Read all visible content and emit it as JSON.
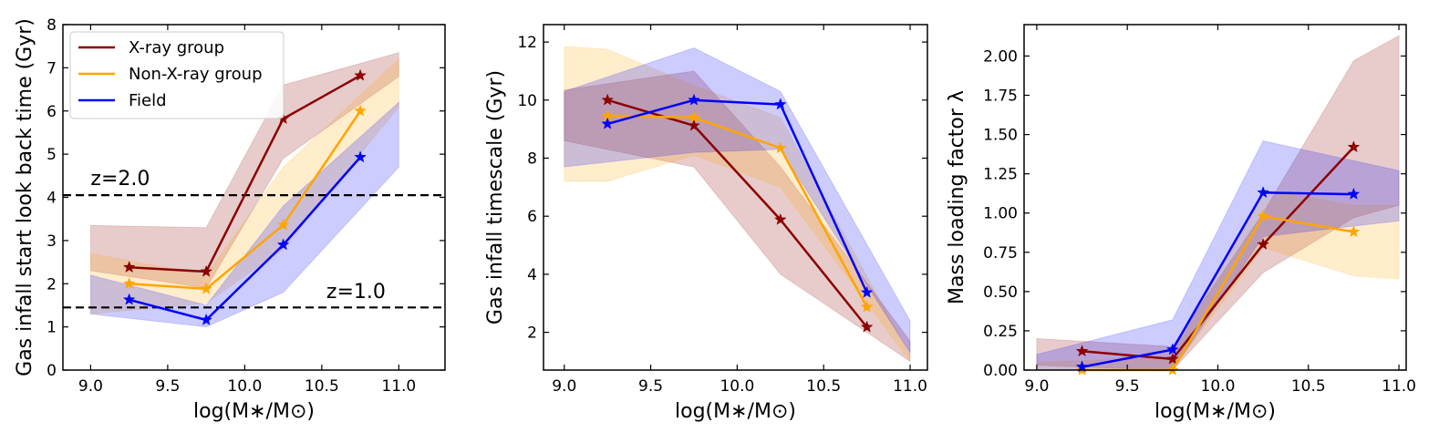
{
  "chart_data": [
    {
      "type": "line",
      "xlabel": "log(M∗/M⊙)",
      "ylabel": "Gas infall start look back time (Gyr)",
      "xlim": [
        8.82,
        11.3
      ],
      "ylim": [
        0,
        8
      ],
      "xticks": [
        9.0,
        9.5,
        10.0,
        10.5,
        11.0
      ],
      "xtick_labels": [
        "9.0",
        "9.5",
        "10.0",
        "10.5",
        "11.0"
      ],
      "yticks": [
        0,
        1,
        2,
        3,
        4,
        5,
        6,
        7,
        8
      ],
      "ytick_labels": [
        "0",
        "1",
        "2",
        "3",
        "4",
        "5",
        "6",
        "7",
        "8"
      ],
      "legend": {
        "position": "top-left",
        "entries": [
          "X-ray group",
          "Non-X-ray group",
          "Field"
        ]
      },
      "hlines": [
        {
          "y": 4.05,
          "label": "z=2.0",
          "label_x": 9.0,
          "label_y": 4.28
        },
        {
          "y": 1.45,
          "label": "z=1.0",
          "label_x": 10.53,
          "label_y": 1.67
        }
      ],
      "series": [
        {
          "name": "X-ray group",
          "color": "#8b0000",
          "x": [
            9.25,
            9.75,
            10.25,
            10.75
          ],
          "y": [
            2.38,
            2.28,
            5.82,
            6.82
          ],
          "band_x": [
            9.0,
            9.75,
            10.25,
            11.0
          ],
          "band_lo": [
            2.3,
            1.9,
            4.9,
            6.8
          ],
          "band_hi": [
            3.35,
            3.3,
            6.6,
            7.35
          ]
        },
        {
          "name": "Non-X-ray group",
          "color": "#ffa500",
          "x": [
            9.25,
            9.75,
            10.25,
            10.75
          ],
          "y": [
            2.0,
            1.88,
            3.36,
            6.0
          ],
          "band_x": [
            9.0,
            9.75,
            10.25,
            11.0
          ],
          "band_lo": [
            1.3,
            1.55,
            2.8,
            6.1
          ],
          "band_hi": [
            2.7,
            2.2,
            4.7,
            7.2
          ]
        },
        {
          "name": "Field",
          "color": "#0000ff",
          "x": [
            9.25,
            9.75,
            10.25,
            10.75
          ],
          "y": [
            1.63,
            1.16,
            2.9,
            4.93
          ],
          "band_x": [
            9.0,
            9.75,
            10.25,
            11.0
          ],
          "band_lo": [
            1.3,
            1.0,
            1.8,
            4.7
          ],
          "band_hi": [
            2.2,
            1.5,
            3.8,
            6.2
          ]
        }
      ]
    },
    {
      "type": "line",
      "xlabel": "log(M∗/M⊙)",
      "ylabel": "Gas infall timescale (Gyr)",
      "xlim": [
        8.88,
        11.1
      ],
      "ylim": [
        0.7,
        12.6
      ],
      "xticks": [
        9.0,
        9.5,
        10.0,
        10.5,
        11.0
      ],
      "xtick_labels": [
        "9.0",
        "9.5",
        "10.0",
        "10.5",
        "11.0"
      ],
      "yticks": [
        2,
        4,
        6,
        8,
        10,
        12
      ],
      "ytick_labels": [
        "2",
        "4",
        "6",
        "8",
        "10",
        "12"
      ],
      "series": [
        {
          "name": "X-ray group",
          "color": "#8b0000",
          "x": [
            9.25,
            9.75,
            10.25,
            10.75
          ],
          "y": [
            10.0,
            9.12,
            5.88,
            2.18
          ],
          "band_x": [
            9.0,
            9.75,
            10.25,
            11.0
          ],
          "band_lo": [
            8.6,
            7.7,
            4.0,
            1.0
          ],
          "band_hi": [
            10.35,
            11.0,
            7.7,
            1.7
          ]
        },
        {
          "name": "Non-X-ray group",
          "color": "#ffa500",
          "x": [
            9.25,
            9.75,
            10.25,
            10.75
          ],
          "y": [
            9.45,
            9.4,
            8.35,
            2.87
          ],
          "band_x": [
            9.0,
            9.25,
            9.75,
            10.25,
            11.0
          ],
          "band_lo": [
            7.2,
            7.2,
            8.1,
            7.0,
            1.0
          ],
          "band_hi": [
            11.85,
            11.75,
            10.5,
            9.4,
            1.2
          ]
        },
        {
          "name": "Field",
          "color": "#0000ff",
          "x": [
            9.25,
            9.75,
            10.25,
            10.75
          ],
          "y": [
            9.18,
            10.0,
            9.85,
            3.37
          ],
          "band_x": [
            9.0,
            9.75,
            10.25,
            11.0
          ],
          "band_lo": [
            7.7,
            8.2,
            8.3,
            1.3
          ],
          "band_hi": [
            10.3,
            11.8,
            10.3,
            2.4
          ]
        }
      ]
    },
    {
      "type": "line",
      "xlabel": "log(M∗/M⊙)",
      "ylabel": "Mass loading factor λ",
      "xlim": [
        8.93,
        11.04
      ],
      "ylim": [
        0,
        2.2
      ],
      "xticks": [
        9.0,
        9.5,
        10.0,
        10.5,
        11.0
      ],
      "xtick_labels": [
        "9.0",
        "9.5",
        "10.0",
        "10.5",
        "11.0"
      ],
      "yticks": [
        0.0,
        0.25,
        0.5,
        0.75,
        1.0,
        1.25,
        1.5,
        1.75,
        2.0
      ],
      "ytick_labels": [
        "0.00",
        "0.25",
        "0.50",
        "0.75",
        "1.00",
        "1.25",
        "1.50",
        "1.75",
        "2.00"
      ],
      "series": [
        {
          "name": "X-ray group",
          "color": "#8b0000",
          "x": [
            9.25,
            9.75,
            10.25,
            10.75
          ],
          "y": [
            0.12,
            0.07,
            0.8,
            1.42
          ],
          "band_x": [
            9.0,
            9.75,
            10.25,
            10.75,
            11.0
          ],
          "band_lo": [
            0.03,
            0.0,
            0.62,
            0.97,
            1.05
          ],
          "band_hi": [
            0.2,
            0.15,
            1.0,
            1.97,
            2.13
          ]
        },
        {
          "name": "Non-X-ray group",
          "color": "#ffa500",
          "x": [
            9.25,
            9.75,
            10.25,
            10.75
          ],
          "y": [
            0.0,
            0.0,
            0.98,
            0.88
          ],
          "band_x": [
            9.0,
            9.75,
            10.25,
            10.75,
            11.0
          ],
          "band_lo": [
            0.0,
            0.0,
            0.78,
            0.6,
            0.58
          ],
          "band_hi": [
            0.05,
            0.08,
            1.15,
            1.05,
            1.05
          ]
        },
        {
          "name": "Field",
          "color": "#0000ff",
          "x": [
            9.25,
            9.75,
            10.25,
            10.75
          ],
          "y": [
            0.02,
            0.13,
            1.13,
            1.12
          ],
          "band_x": [
            9.0,
            9.75,
            10.25,
            11.0
          ],
          "band_lo": [
            0.0,
            0.0,
            0.85,
            0.95
          ],
          "band_hi": [
            0.1,
            0.32,
            1.46,
            1.27
          ]
        }
      ]
    }
  ]
}
